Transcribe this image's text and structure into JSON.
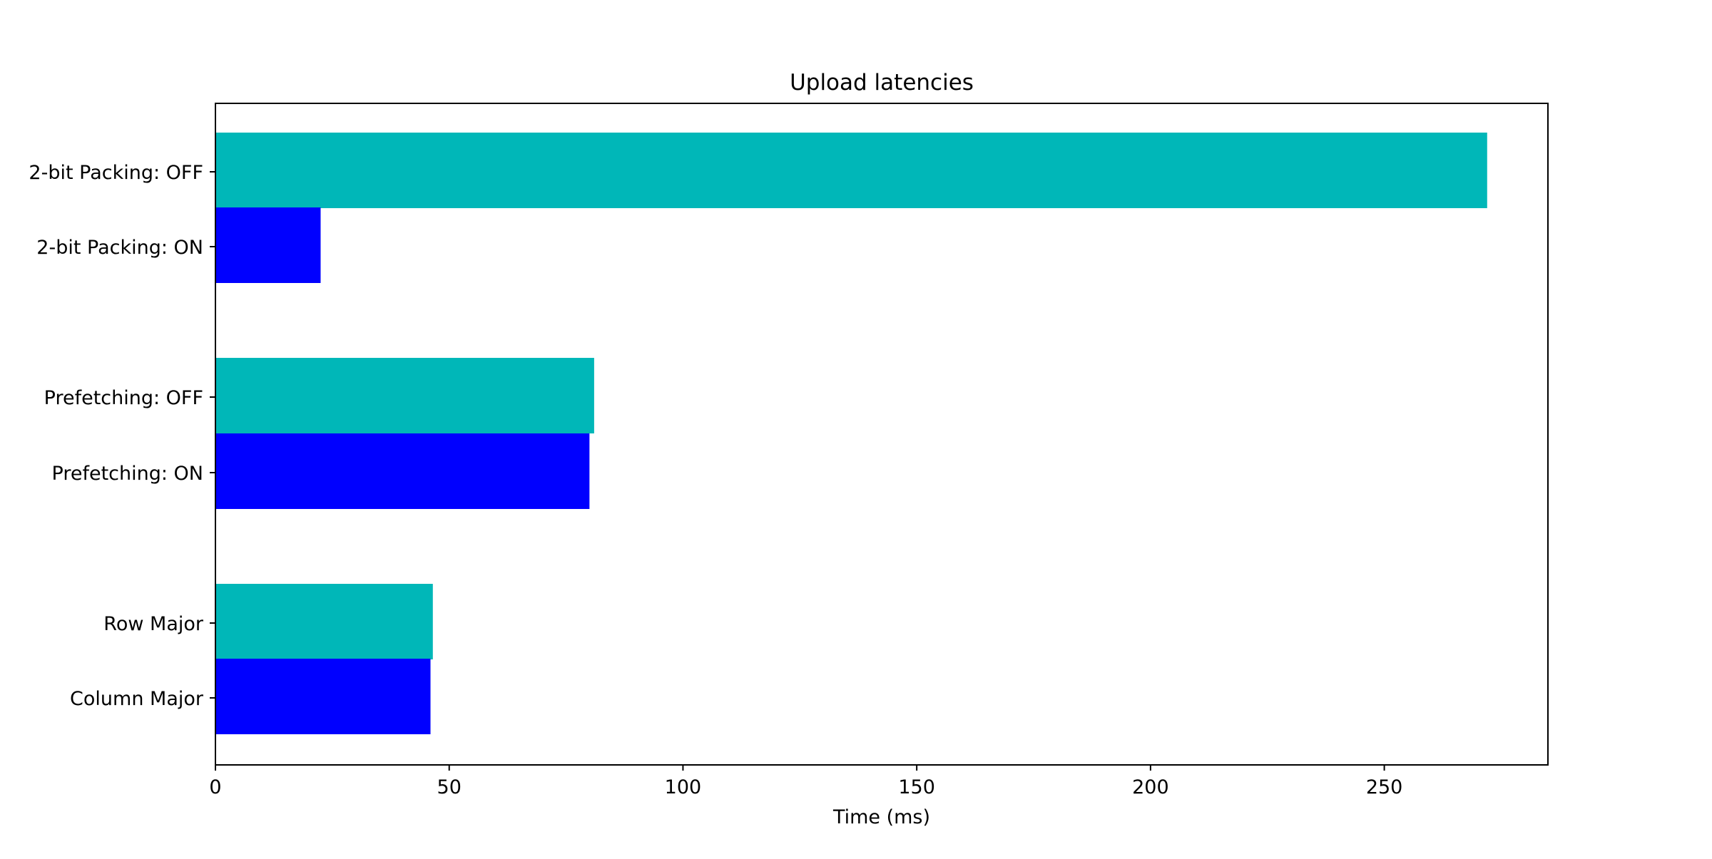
{
  "chart_data": {
    "type": "bar",
    "orientation": "horizontal",
    "title": "Upload latencies",
    "xlabel": "Time (ms)",
    "ylabel": "",
    "xlim": [
      0,
      285
    ],
    "x_ticks": [
      0,
      50,
      100,
      150,
      200,
      250
    ],
    "grid": false,
    "bars": [
      {
        "label": "2-bit Packing: OFF",
        "value": 272,
        "color": "#00b7b8"
      },
      {
        "label": "2-bit Packing: ON",
        "value": 22.5,
        "color": "#0000ff"
      },
      {
        "label": "Prefetching: OFF",
        "value": 81,
        "color": "#00b7b8"
      },
      {
        "label": "Prefetching: ON",
        "value": 80,
        "color": "#0000ff"
      },
      {
        "label": "Row Major",
        "value": 46.5,
        "color": "#00b7b8"
      },
      {
        "label": "Column Major",
        "value": 46,
        "color": "#0000ff"
      }
    ]
  }
}
